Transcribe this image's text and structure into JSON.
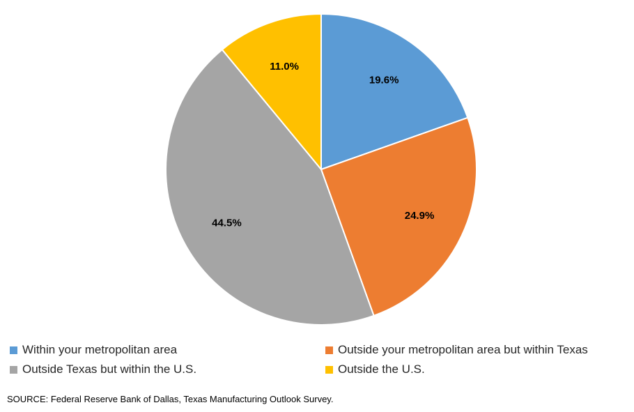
{
  "chart_data": {
    "type": "pie",
    "title": "",
    "series": [
      {
        "name": "Within your metropolitan area",
        "value": 19.6,
        "label": "19.6%",
        "color": "#5B9BD5"
      },
      {
        "name": "Outside your metropolitan area but within Texas",
        "value": 24.9,
        "label": "24.9%",
        "color": "#ED7D31"
      },
      {
        "name": "Outside Texas but within the U.S.",
        "value": 44.5,
        "label": "44.5%",
        "color": "#A5A5A5"
      },
      {
        "name": "Outside the U.S.",
        "value": 11.0,
        "label": "11.0%",
        "color": "#FFC000"
      }
    ],
    "legend_position": "bottom"
  },
  "source": "SOURCE: Federal Reserve Bank of Dallas, Texas Manufacturing Outlook Survey."
}
